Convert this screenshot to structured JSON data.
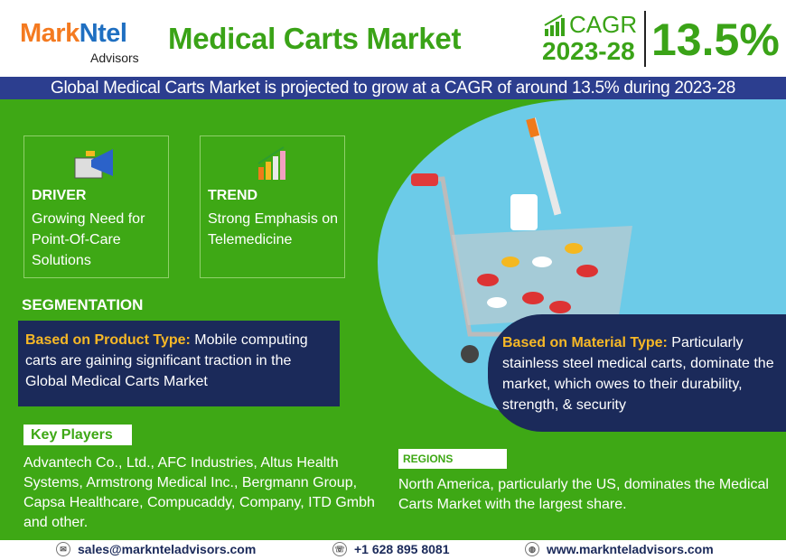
{
  "header": {
    "logo_a": "Mark",
    "logo_b": "Ntel",
    "logo_sub": "Advisors",
    "title": "Medical Carts Market",
    "cagr_label": "CAGR",
    "cagr_years": "2023-28",
    "cagr_value": "13.5%"
  },
  "banner": "Global Medical Carts Market is projected to grow at a CAGR of around 13.5% during 2023-28",
  "driver": {
    "heading": "DRIVER",
    "text": "Growing Need for Point-Of-Care Solutions",
    "icon": "megaphone-icon"
  },
  "trend": {
    "heading": "TREND",
    "text": "Strong Emphasis on Telemedicine",
    "icon": "bar-chart-icon"
  },
  "segmentation": {
    "heading": "SEGMENTATION",
    "product": {
      "label": "Based on Product Type:",
      "text": " Mobile computing carts are gaining significant traction in the Global Medical Carts Market"
    },
    "material": {
      "label": "Based on Material Type:",
      "text": " Particularly stainless steel medical carts, dominate the market, which owes to their durability, strength, & security"
    }
  },
  "key_players": {
    "heading": "Key Players",
    "text": "Advantech Co., Ltd., AFC Industries, Altus Health Systems, Armstrong Medical Inc., Bergmann Group, Capsa Healthcare, Compucaddy, Company, ITD Gmbh and other."
  },
  "regions": {
    "heading": "REGIONS",
    "text": "North America, particularly the US, dominates the Medical Carts Market with the largest share."
  },
  "footer": {
    "email": "sales@marknteladvisors.com",
    "phone": "+1 628 895 8081",
    "website": "www.marknteladvisors.com"
  },
  "colors": {
    "green": "#3ea815",
    "navy": "#1b2a5a",
    "band": "#2c3e8f",
    "accent": "#f7b826"
  }
}
